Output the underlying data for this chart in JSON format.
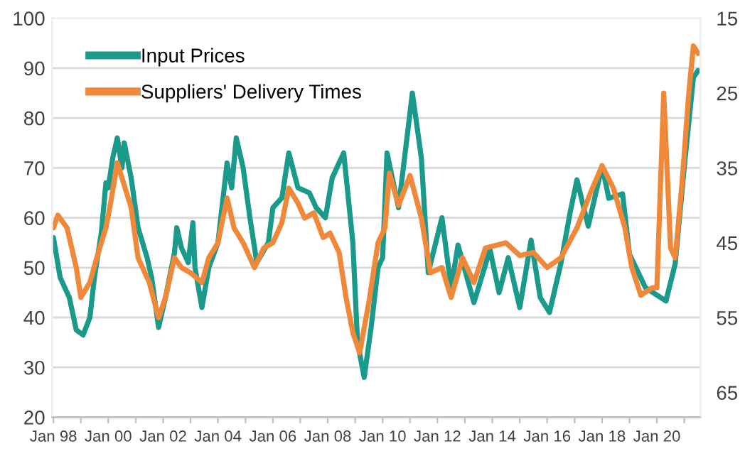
{
  "chart_data": {
    "type": "line",
    "xlim": [
      "1997-12-15",
      "2021-08-01"
    ],
    "xticks": [
      {
        "value": "1998-01",
        "label": "Jan 98"
      },
      {
        "value": "1999-01",
        "label": null
      },
      {
        "value": "2000-01",
        "label": "Jan 00"
      },
      {
        "value": "2001-01",
        "label": null
      },
      {
        "value": "2002-01",
        "label": "Jan 02"
      },
      {
        "value": "2003-01",
        "label": null
      },
      {
        "value": "2004-01",
        "label": "Jan 04"
      },
      {
        "value": "2005-01",
        "label": null
      },
      {
        "value": "2006-01",
        "label": "Jan 06"
      },
      {
        "value": "2007-01",
        "label": null
      },
      {
        "value": "2008-01",
        "label": "Jan 08"
      },
      {
        "value": "2009-01",
        "label": null
      },
      {
        "value": "2010-01",
        "label": "Jan 10"
      },
      {
        "value": "2011-01",
        "label": null
      },
      {
        "value": "2012-01",
        "label": "Jan 12"
      },
      {
        "value": "2013-01",
        "label": null
      },
      {
        "value": "2014-01",
        "label": "Jan 14"
      },
      {
        "value": "2015-01",
        "label": null
      },
      {
        "value": "2016-01",
        "label": "Jan 16"
      },
      {
        "value": "2017-01",
        "label": null
      },
      {
        "value": "2018-01",
        "label": "Jan 18"
      },
      {
        "value": "2019-01",
        "label": null
      },
      {
        "value": "2020-01",
        "label": "Jan 20"
      },
      {
        "value": "2021-01",
        "label": null
      }
    ],
    "ylim": [
      20,
      100
    ],
    "yticks": [
      20,
      30,
      40,
      50,
      60,
      70,
      80,
      90,
      100
    ],
    "y2lim": [
      68.3,
      15
    ],
    "y2ticks": [
      15,
      25,
      35,
      45,
      55,
      65
    ],
    "grid": "y",
    "legend": "top left",
    "line_style": "solid",
    "marker": "none",
    "series": [
      {
        "name": "Input Prices",
        "color": "#1a9a8a",
        "x": [
          "1998-01",
          "1998-04",
          "1998-08",
          "1998-11",
          "1999-02",
          "1999-05",
          "1999-07",
          "1999-10",
          "1999-12",
          "2000-01",
          "2000-03",
          "2000-05",
          "2000-07",
          "2000-08",
          "2000-11",
          "2001-02",
          "2001-06",
          "2001-08",
          "2001-11",
          "2002-02",
          "2002-06",
          "2002-07",
          "2002-09",
          "2002-12",
          "2003-02",
          "2003-03",
          "2003-06",
          "2003-09",
          "2004-01",
          "2004-05",
          "2004-07",
          "2004-09",
          "2004-12",
          "2005-03",
          "2005-06",
          "2005-11",
          "2006-01",
          "2006-05",
          "2006-08",
          "2006-12",
          "2007-05",
          "2007-08",
          "2007-12",
          "2008-03",
          "2008-08",
          "2008-12",
          "2009-02",
          "2009-05",
          "2009-08",
          "2009-11",
          "2010-01",
          "2010-03",
          "2010-08",
          "2011-02",
          "2011-06",
          "2011-09",
          "2012-03",
          "2012-07",
          "2012-10",
          "2013-05",
          "2013-12",
          "2014-04",
          "2014-08",
          "2015-01",
          "2015-06",
          "2015-10",
          "2016-02",
          "2016-07",
          "2016-11",
          "2017-02",
          "2017-07",
          "2018-01",
          "2018-04",
          "2018-10",
          "2019-01",
          "2019-08",
          "2020-05",
          "2020-09",
          "2021-01",
          "2021-05",
          "2021-07"
        ],
        "values": [
          56,
          48,
          44,
          37.5,
          36.5,
          40,
          48,
          57,
          67,
          66,
          72,
          76,
          70,
          75,
          68,
          58,
          52,
          48,
          38,
          44,
          53,
          58,
          54,
          51,
          59,
          50,
          42,
          50,
          55,
          71,
          66,
          76,
          70,
          60,
          51,
          55,
          62,
          64,
          73,
          66,
          65,
          62,
          60,
          68,
          73,
          55,
          35,
          28,
          38,
          50,
          52,
          73,
          62,
          85,
          72,
          49,
          60,
          46,
          54.5,
          43,
          53.6,
          45,
          52,
          42,
          55.5,
          44,
          41,
          50.8,
          61,
          67.6,
          58.3,
          70.4,
          63.9,
          64.8,
          52.7,
          46,
          43.3,
          50.8,
          70.4,
          88.1,
          89.5
        ]
      },
      {
        "name": "Suppliers' Delivery Times",
        "color": "#f0883a",
        "axis": "y2",
        "x": [
          "1998-01",
          "1998-03",
          "1998-07",
          "1998-11",
          "1999-01",
          "1999-05",
          "1999-08",
          "1999-12",
          "2000-02",
          "2000-05",
          "2000-07",
          "2000-11",
          "2001-02",
          "2001-07",
          "2001-11",
          "2002-02",
          "2002-06",
          "2002-09",
          "2003-01",
          "2003-06",
          "2003-09",
          "2004-01",
          "2004-05",
          "2004-08",
          "2004-12",
          "2005-05",
          "2005-09",
          "2006-01",
          "2006-05",
          "2006-08",
          "2006-12",
          "2007-03",
          "2007-07",
          "2007-11",
          "2008-02",
          "2008-06",
          "2008-09",
          "2008-12",
          "2009-03",
          "2009-07",
          "2009-11",
          "2010-02",
          "2010-04",
          "2010-08",
          "2011-01",
          "2011-06",
          "2011-10",
          "2012-03",
          "2012-07",
          "2012-12",
          "2013-05",
          "2013-10",
          "2014-07",
          "2015-01",
          "2015-07",
          "2016-01",
          "2016-07",
          "2017-02",
          "2017-08",
          "2018-01",
          "2018-06",
          "2018-11",
          "2019-02",
          "2019-06",
          "2019-11",
          "2020-01",
          "2020-04",
          "2020-07",
          "2020-09",
          "2020-12",
          "2021-03",
          "2021-05",
          "2021-07"
        ],
        "values": [
          43,
          41.3,
          43,
          48.3,
          52.3,
          50.3,
          47,
          43,
          39.7,
          34.3,
          36.3,
          40.3,
          47,
          50.3,
          55,
          52.3,
          47,
          48.3,
          49,
          50.3,
          47,
          45,
          39,
          43,
          45,
          48.3,
          45.7,
          45,
          42.3,
          37.7,
          39.7,
          41.7,
          41,
          44.3,
          43.7,
          46.3,
          52.3,
          57,
          59.7,
          53,
          45,
          43,
          35.7,
          40,
          36,
          41.7,
          49,
          48.3,
          52.3,
          47,
          50.3,
          45.7,
          45,
          46.7,
          46.3,
          48.3,
          47,
          43,
          38.3,
          34.7,
          37.7,
          43,
          48.3,
          52,
          51,
          51,
          25,
          45.7,
          47,
          37,
          25,
          18.7,
          19.7
        ]
      }
    ]
  }
}
